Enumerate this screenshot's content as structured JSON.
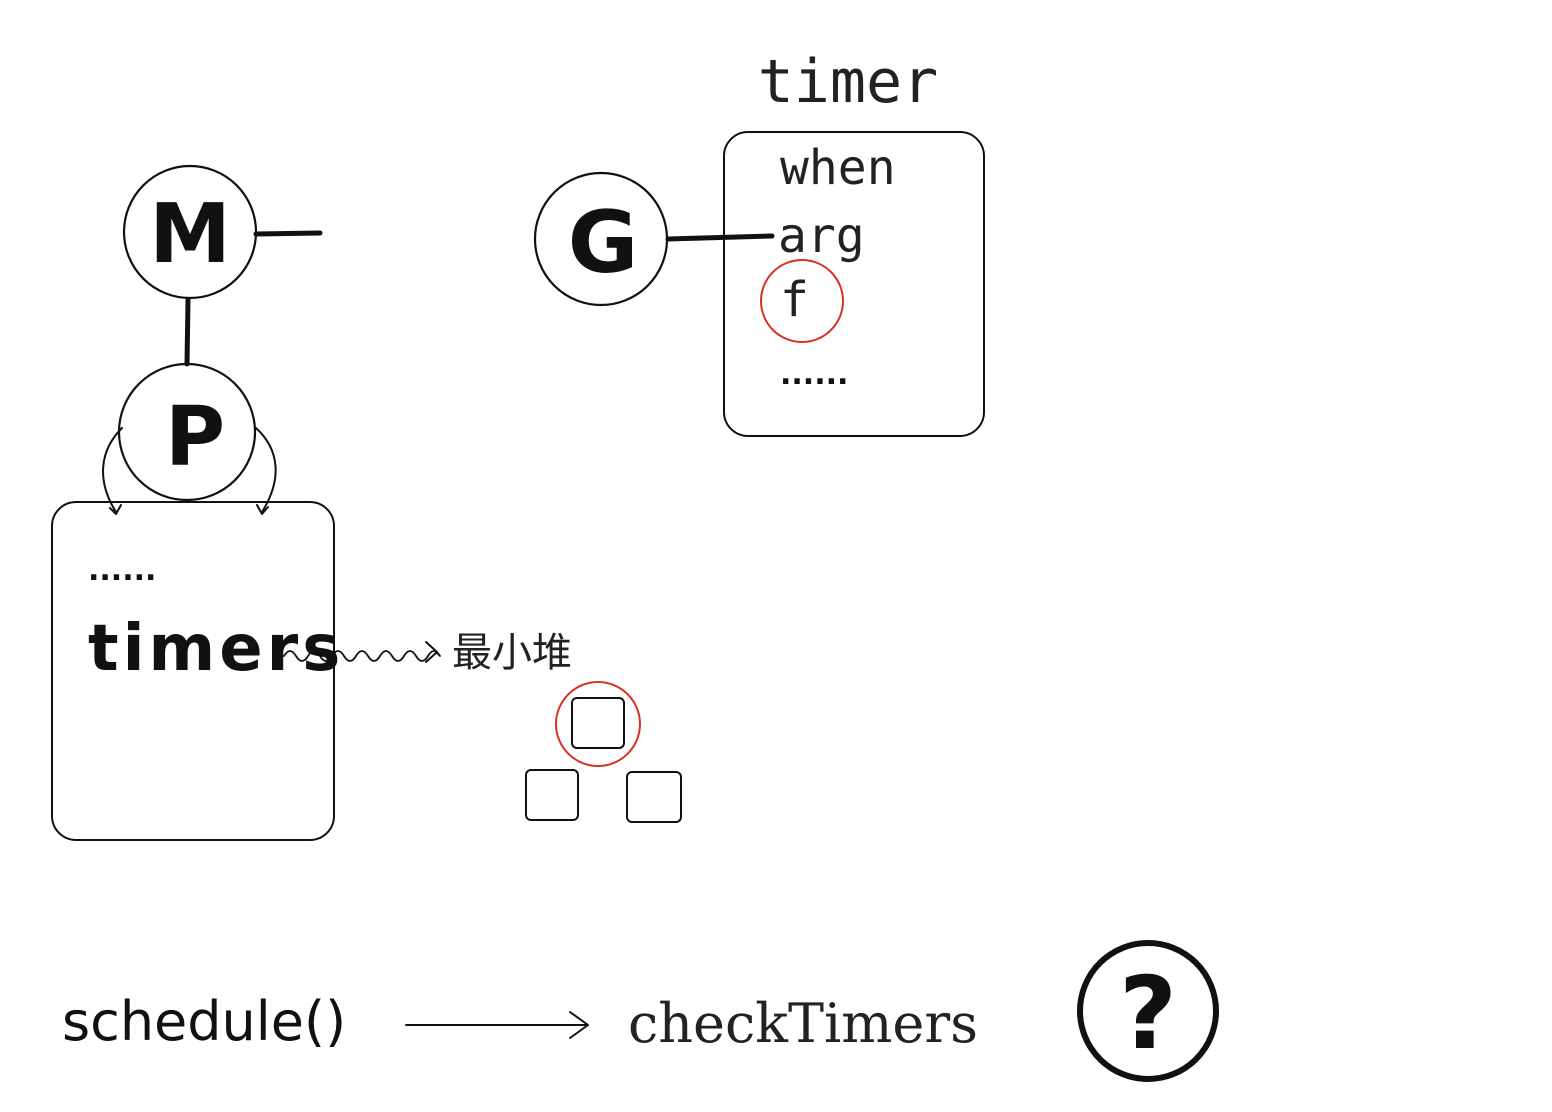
{
  "nodes": {
    "m": "M",
    "p": "P",
    "g": "G"
  },
  "p_box": {
    "dots": "......",
    "timers": "timers"
  },
  "heap": {
    "label": "最小堆"
  },
  "timer_struct": {
    "title": "timer",
    "fields": [
      "when",
      "arg",
      "f",
      "......"
    ]
  },
  "flow": {
    "schedule": "schedule()",
    "check_timers": "checkTimers",
    "question": "?"
  },
  "colors": {
    "ink": "#111111",
    "highlight": "#d93025"
  }
}
